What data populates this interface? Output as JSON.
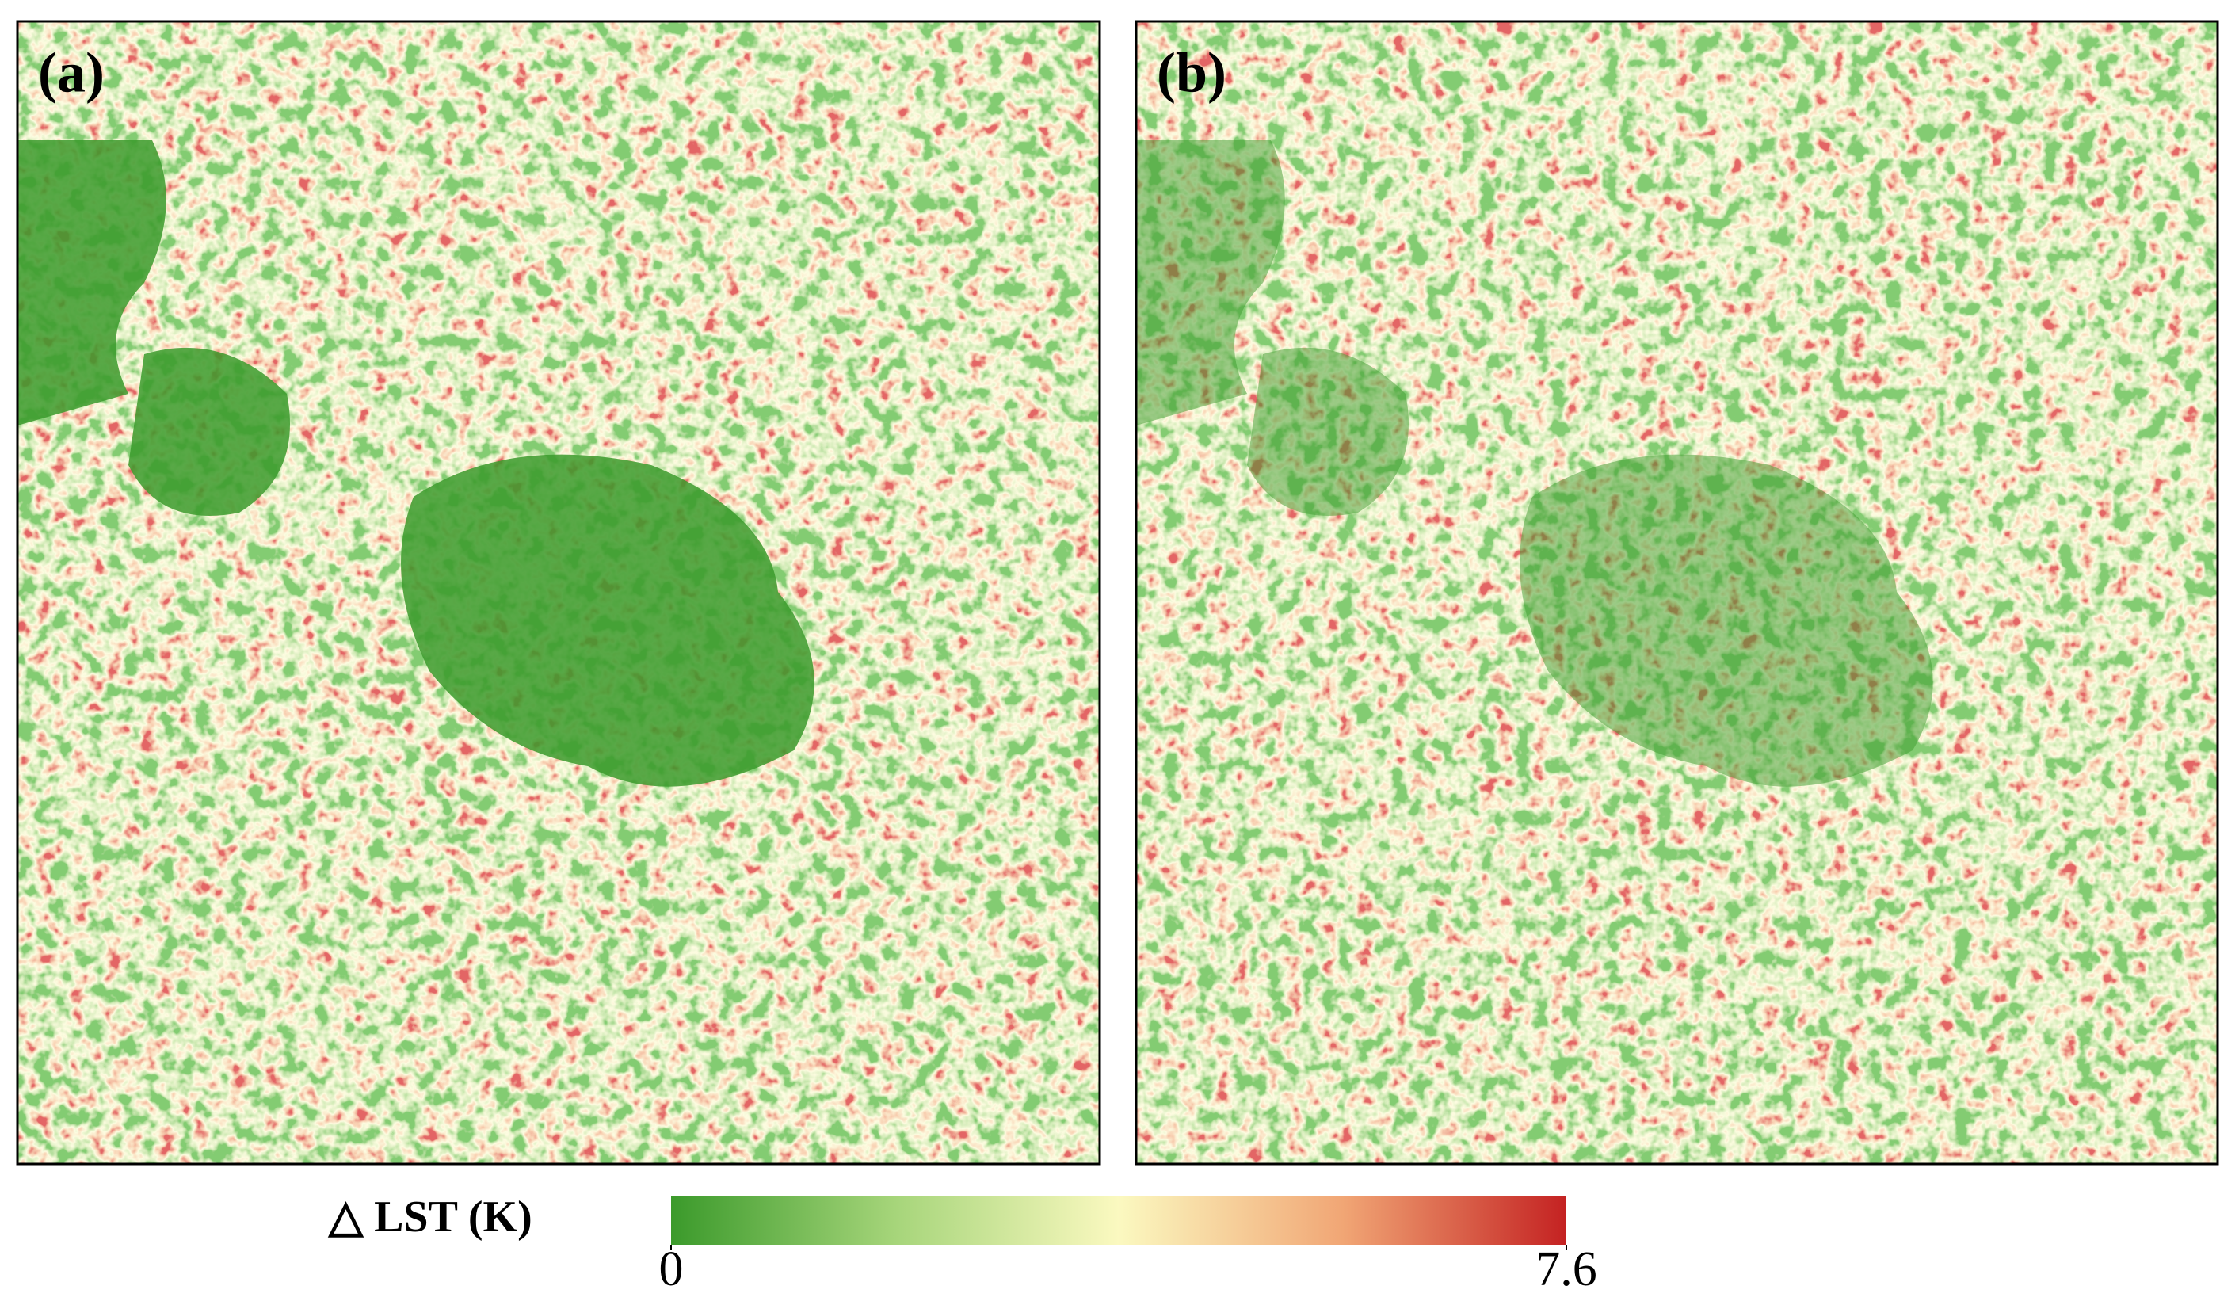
{
  "panels": [
    {
      "label": "(a)"
    },
    {
      "label": "(b)"
    }
  ],
  "colorbar": {
    "label": "△ LST (K)",
    "ticks": [
      0,
      7.6
    ],
    "lim": [
      0,
      7.6
    ],
    "colors": [
      "#3b9a2b",
      "#a6d57a",
      "#fbf9c0",
      "#f1a675",
      "#c42222"
    ]
  }
}
